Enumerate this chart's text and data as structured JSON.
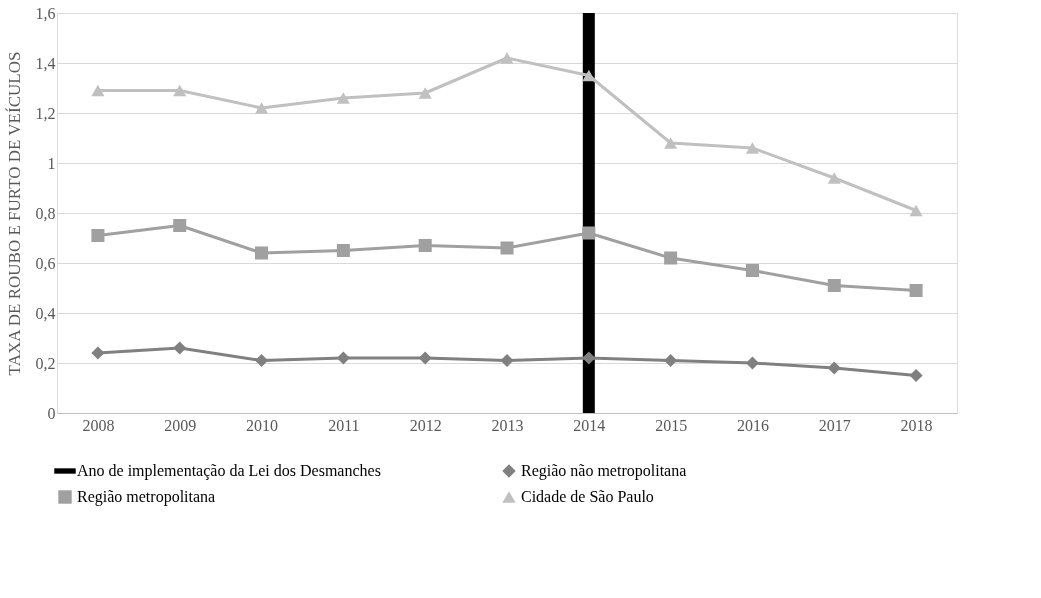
{
  "chart_data": {
    "type": "line",
    "ylabel": "TAXA DE ROUBO E FURTO DE VEÍCULOS",
    "categories": [
      "2008",
      "2009",
      "2010",
      "2011",
      "2012",
      "2013",
      "2014",
      "2015",
      "2016",
      "2017",
      "2018"
    ],
    "series": [
      {
        "name": "Região não metropolitana",
        "color": "#808080",
        "marker": "diamond",
        "values": [
          0.24,
          0.26,
          0.21,
          0.22,
          0.22,
          0.21,
          0.22,
          0.21,
          0.2,
          0.18,
          0.15
        ]
      },
      {
        "name": "Região metropolitana",
        "color": "#a0a0a0",
        "marker": "square",
        "values": [
          0.71,
          0.75,
          0.64,
          0.65,
          0.67,
          0.66,
          0.72,
          0.62,
          0.57,
          0.51,
          0.49
        ]
      },
      {
        "name": "Cidade de São Paulo",
        "color": "#c0c0c0",
        "marker": "triangle",
        "values": [
          1.29,
          1.29,
          1.22,
          1.26,
          1.28,
          1.42,
          1.35,
          1.08,
          1.06,
          0.94,
          0.81
        ]
      }
    ],
    "ref_lines": [
      {
        "axis": "x",
        "value": "2014",
        "label": "Ano de implementação da Lei dos Desmanches",
        "color": "#000000"
      }
    ],
    "ylim": [
      0,
      1.6
    ],
    "yticks": [
      0,
      {
        "value": 0.2,
        "label": "0,2"
      },
      {
        "value": 0.4,
        "label": "0,4"
      },
      {
        "value": 0.6,
        "label": "0,6"
      },
      {
        "value": 0.8,
        "label": "0,8"
      },
      1,
      {
        "value": 1.2,
        "label": "1,2"
      },
      {
        "value": 1.4,
        "label": "1,4"
      },
      {
        "value": 1.6,
        "label": "1,6"
      }
    ],
    "grid": "y",
    "legend": "bottom"
  }
}
